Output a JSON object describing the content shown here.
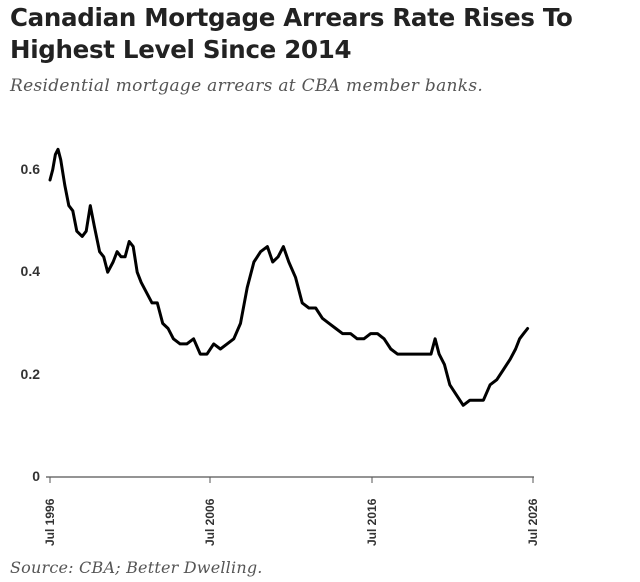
{
  "header": {
    "title": "Canadian Mortgage Arrears Rate Rises To Highest Level Since 2014",
    "subtitle": "Residential mortgage arrears at CBA member banks."
  },
  "footer": {
    "source": "Source: CBA; Better Dwelling."
  },
  "colors": {
    "line": "#000000",
    "axis": "#555555",
    "text": "#333333",
    "title": "#222222",
    "subtitle": "#555555"
  },
  "chart_data": {
    "type": "line",
    "title": "Canadian Mortgage Arrears Rate Rises To Highest Level Since 2014",
    "subtitle": "Residential mortgage arrears at CBA member banks.",
    "xlabel": "",
    "ylabel": "",
    "ylim": [
      0,
      0.65
    ],
    "xlim": [
      "1996-07",
      "2026-07"
    ],
    "grid": false,
    "x_ticks": [
      "Jul 1996",
      "Jul 2006",
      "Jul 2016",
      "Jul 2026"
    ],
    "y_ticks": [
      "0",
      "0.2",
      "0.4",
      "0.6"
    ],
    "y_tick_values": [
      0,
      0.2,
      0.4,
      0.6
    ],
    "series": [
      {
        "values": [
          [
            "1996-07",
            0.58
          ],
          [
            "1996-09",
            0.6
          ],
          [
            "1996-11",
            0.63
          ],
          [
            "1997-01",
            0.64
          ],
          [
            "1997-03",
            0.62
          ],
          [
            "1997-06",
            0.57
          ],
          [
            "1997-09",
            0.53
          ],
          [
            "1997-12",
            0.52
          ],
          [
            "1998-03",
            0.48
          ],
          [
            "1998-07",
            0.47
          ],
          [
            "1998-10",
            0.48
          ],
          [
            "1999-01",
            0.53
          ],
          [
            "1999-04",
            0.49
          ],
          [
            "1999-08",
            0.44
          ],
          [
            "1999-11",
            0.43
          ],
          [
            "2000-02",
            0.4
          ],
          [
            "2000-06",
            0.42
          ],
          [
            "2000-09",
            0.44
          ],
          [
            "2000-12",
            0.43
          ],
          [
            "2001-03",
            0.43
          ],
          [
            "2001-06",
            0.46
          ],
          [
            "2001-09",
            0.45
          ],
          [
            "2001-12",
            0.4
          ],
          [
            "2002-03",
            0.38
          ],
          [
            "2002-07",
            0.36
          ],
          [
            "2002-11",
            0.34
          ],
          [
            "2003-03",
            0.34
          ],
          [
            "2003-07",
            0.3
          ],
          [
            "2003-11",
            0.29
          ],
          [
            "2004-03",
            0.27
          ],
          [
            "2004-08",
            0.26
          ],
          [
            "2005-01",
            0.26
          ],
          [
            "2005-06",
            0.27
          ],
          [
            "2005-11",
            0.24
          ],
          [
            "2006-04",
            0.24
          ],
          [
            "2006-09",
            0.26
          ],
          [
            "2007-02",
            0.25
          ],
          [
            "2007-07",
            0.26
          ],
          [
            "2007-12",
            0.27
          ],
          [
            "2008-05",
            0.3
          ],
          [
            "2008-10",
            0.37
          ],
          [
            "2009-03",
            0.42
          ],
          [
            "2009-08",
            0.44
          ],
          [
            "2010-01",
            0.45
          ],
          [
            "2010-05",
            0.42
          ],
          [
            "2010-09",
            0.43
          ],
          [
            "2011-01",
            0.45
          ],
          [
            "2011-05",
            0.42
          ],
          [
            "2011-10",
            0.39
          ],
          [
            "2012-03",
            0.34
          ],
          [
            "2012-08",
            0.33
          ],
          [
            "2013-01",
            0.33
          ],
          [
            "2013-06",
            0.31
          ],
          [
            "2013-11",
            0.3
          ],
          [
            "2014-04",
            0.29
          ],
          [
            "2014-09",
            0.28
          ],
          [
            "2015-03",
            0.28
          ],
          [
            "2015-08",
            0.27
          ],
          [
            "2016-01",
            0.27
          ],
          [
            "2016-06",
            0.28
          ],
          [
            "2016-11",
            0.28
          ],
          [
            "2017-04",
            0.27
          ],
          [
            "2017-09",
            0.25
          ],
          [
            "2018-02",
            0.24
          ],
          [
            "2018-07",
            0.24
          ],
          [
            "2018-12",
            0.24
          ],
          [
            "2019-05",
            0.24
          ],
          [
            "2019-10",
            0.24
          ],
          [
            "2020-03",
            0.24
          ],
          [
            "2020-06",
            0.27
          ],
          [
            "2020-09",
            0.24
          ],
          [
            "2021-01",
            0.22
          ],
          [
            "2021-05",
            0.18
          ],
          [
            "2021-10",
            0.16
          ],
          [
            "2022-03",
            0.14
          ],
          [
            "2022-08",
            0.15
          ],
          [
            "2023-01",
            0.15
          ],
          [
            "2023-06",
            0.15
          ],
          [
            "2023-11",
            0.18
          ],
          [
            "2024-04",
            0.19
          ],
          [
            "2024-09",
            0.21
          ],
          [
            "2025-02",
            0.23
          ],
          [
            "2025-06",
            0.25
          ],
          [
            "2025-09",
            0.27
          ],
          [
            "2025-12",
            0.28
          ],
          [
            "2026-03",
            0.29
          ]
        ]
      }
    ]
  }
}
